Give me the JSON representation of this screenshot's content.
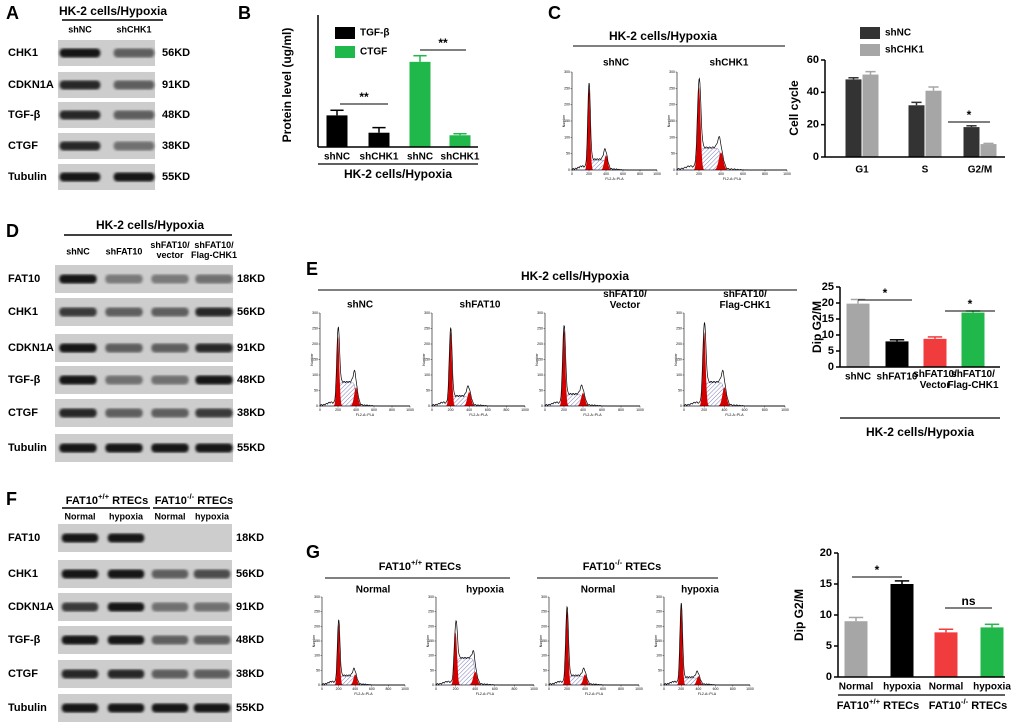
{
  "panel_labels": [
    "A",
    "B",
    "C",
    "D",
    "E",
    "F",
    "G"
  ],
  "blots": [
    {
      "title": "HK-2 cells/Hypoxia",
      "lanes": [
        "shNC",
        "shCHK1"
      ],
      "rows": [
        {
          "protein": "CHK1",
          "size": "56KD"
        },
        {
          "protein": "CDKN1A",
          "size": "91KD"
        },
        {
          "protein": "TGF-β",
          "size": "48KD"
        },
        {
          "protein": "CTGF",
          "size": "38KD"
        },
        {
          "protein": "Tubulin",
          "size": "55KD"
        }
      ]
    },
    {
      "title": "HK-2 cells/Hypoxia",
      "lanes": [
        "shNC",
        "shFAT10",
        [
          "shFAT10/",
          "vector"
        ],
        [
          "shFAT10/",
          "Flag-CHK1"
        ]
      ],
      "rows": [
        {
          "protein": "FAT10",
          "size": "18KD"
        },
        {
          "protein": "CHK1",
          "size": "56KD"
        },
        {
          "protein": "CDKN1A",
          "size": "91KD"
        },
        {
          "protein": "TGF-β",
          "size": "48KD"
        },
        {
          "protein": "CTGF",
          "size": "38KD"
        },
        {
          "protein": "Tubulin",
          "size": "55KD"
        }
      ]
    },
    {
      "groups": [
        {
          "base": "FAT10",
          "sup": "+/+",
          "rest": " RTECs"
        },
        {
          "base": "FAT10",
          "sup": "-/-",
          "rest": " RTECs"
        }
      ],
      "lanes": [
        "Normal",
        "hypoxia",
        "Normal",
        "hypoxia"
      ],
      "rows": [
        {
          "protein": "FAT10",
          "size": "18KD"
        },
        {
          "protein": "CHK1",
          "size": "56KD"
        },
        {
          "protein": "CDKN1A",
          "size": "91KD"
        },
        {
          "protein": "TGF-β",
          "size": "48KD"
        },
        {
          "protein": "CTGF",
          "size": "38KD"
        },
        {
          "protein": "Tubulin",
          "size": "55KD"
        }
      ]
    }
  ],
  "flow": {
    "axes": {
      "xlabel": "FL2-A::PI-A",
      "ylabel": "Number",
      "xlim": [
        0,
        1000
      ],
      "xticks": [
        0,
        200,
        400,
        600,
        800,
        1000
      ],
      "ylim": [
        0,
        300
      ],
      "yticks": [
        0,
        50,
        100,
        150,
        200,
        250,
        300
      ]
    },
    "panels": [
      {
        "title": "HK-2 cells/Hypoxia",
        "samples": [
          "shNC",
          "shCHK1"
        ]
      },
      {
        "title": "HK-2 cells/Hypoxia",
        "samples": [
          "shNC",
          "shFAT10",
          [
            "shFAT10/",
            "Vector"
          ],
          [
            "shFAT10/",
            "Flag-CHK1"
          ]
        ]
      },
      {
        "groups": [
          {
            "base": "FAT10",
            "sup": "+/+",
            "rest": " RTECs"
          },
          {
            "base": "FAT10",
            "sup": "-/-",
            "rest": " RTECs"
          }
        ],
        "samples": [
          "Normal",
          "hypoxia",
          "Normal",
          "hypoxia"
        ]
      }
    ]
  },
  "chart_data": [
    {
      "type": "bar",
      "ylabel": "Protein level (ug/ml)",
      "xlabel": "HK-2 cells/Hypoxia",
      "categories": [
        "shNC",
        "shCHK1",
        "shNC",
        "shCHK1"
      ],
      "ylim": [
        0,
        20
      ],
      "series": [
        {
          "name": "TGF-β",
          "color": "#000000",
          "values": [
            6.2,
            2.8,
            null,
            null
          ],
          "errors": [
            1.0,
            1.0,
            null,
            null
          ]
        },
        {
          "name": "CTGF",
          "color": "#20b84a",
          "values": [
            null,
            null,
            16.7,
            2.3
          ],
          "errors": [
            null,
            null,
            1.2,
            0.3
          ]
        }
      ],
      "annotations": [
        "**",
        "**"
      ]
    },
    {
      "type": "bar",
      "ylabel": "Cell cycle",
      "categories": [
        "G1",
        "S",
        "G2/M"
      ],
      "ylim": [
        0,
        60
      ],
      "yticks": [
        0,
        20,
        40,
        60
      ],
      "series": [
        {
          "name": "shNC",
          "color": "#333333",
          "values": [
            48,
            32,
            18.5
          ],
          "errors": [
            1,
            1.8,
            0.8
          ]
        },
        {
          "name": "shCHK1",
          "color": "#a6a6a6",
          "values": [
            51,
            41,
            8
          ],
          "errors": [
            1.8,
            2.3,
            0.4
          ]
        }
      ],
      "annotations": [
        "*"
      ]
    },
    {
      "type": "bar",
      "ylabel": "Dip G2/M",
      "xlabel": "HK-2 cells/Hypoxia",
      "categories": [
        "shNC",
        "shFAT10",
        [
          "shFAT10/",
          "Vector"
        ],
        [
          "shFAT10/",
          "Flag-CHK1"
        ]
      ],
      "ylim": [
        0,
        25
      ],
      "yticks": [
        0,
        5,
        10,
        15,
        20,
        25
      ],
      "values": [
        19.8,
        8,
        8.8,
        17
      ],
      "errors": [
        1.3,
        0.5,
        0.6,
        0.5
      ],
      "colors": [
        "#a6a6a6",
        "#000000",
        "#f03c3c",
        "#20b84a"
      ],
      "annotations": [
        "*",
        "*"
      ]
    },
    {
      "type": "bar",
      "ylabel": "Dip G2/M",
      "categories": [
        "Normal",
        "hypoxia",
        "Normal",
        "hypoxia"
      ],
      "groups": [
        {
          "base": "FAT10",
          "sup": "+/+",
          "rest": " RTECs"
        },
        {
          "base": "FAT10",
          "sup": "-/-",
          "rest": " RTECs"
        }
      ],
      "ylim": [
        0,
        20
      ],
      "yticks": [
        0,
        5,
        10,
        15,
        20
      ],
      "values": [
        9,
        15,
        7.2,
        8
      ],
      "errors": [
        0.6,
        0.5,
        0.5,
        0.5
      ],
      "colors": [
        "#a6a6a6",
        "#000000",
        "#f03c3c",
        "#20b84a"
      ],
      "annotations": [
        "*",
        "ns"
      ]
    }
  ]
}
